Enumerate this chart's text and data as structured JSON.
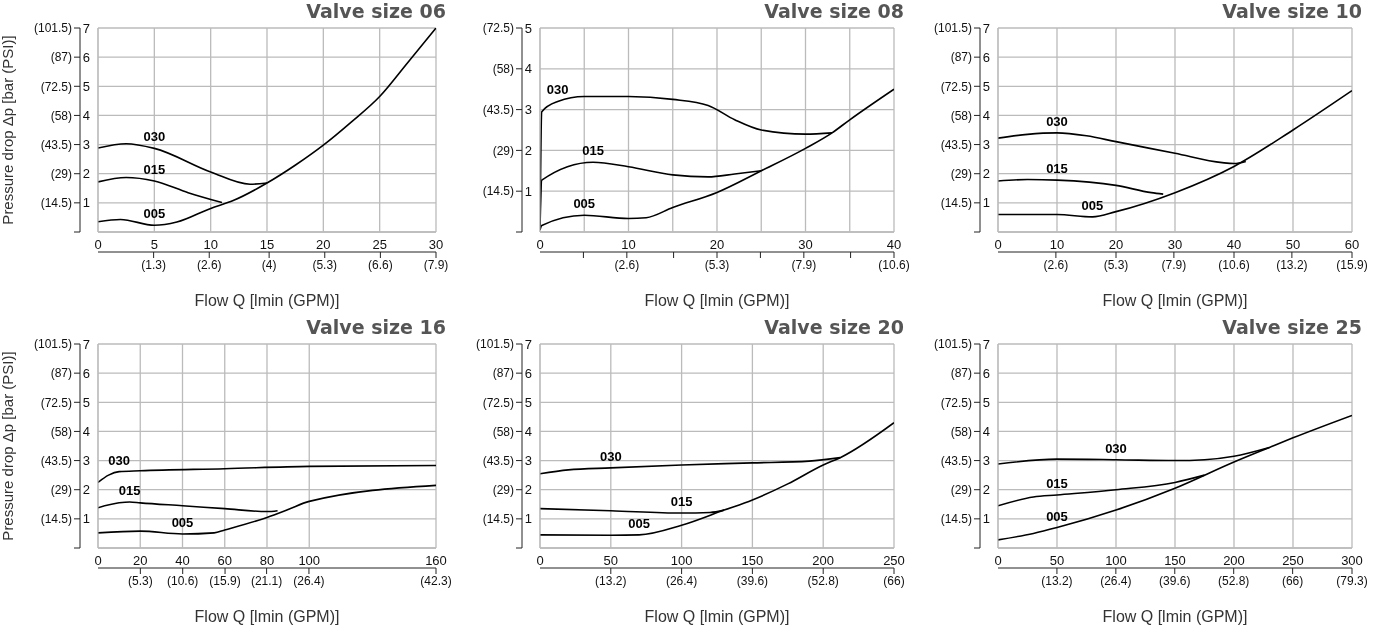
{
  "chart_data": [
    {
      "type": "line",
      "title": "Valve size 06",
      "xlabel": "Flow Q [lmin (GPM)]",
      "y2label": "Pressure drop Δp [bar (PSI)]",
      "grid": true,
      "legend": false,
      "marker": "none",
      "line_style": "solid",
      "xlim": [
        0,
        30
      ],
      "xticks": [
        0,
        5,
        10,
        15,
        20,
        25,
        30
      ],
      "x2lim": [
        0,
        7.9
      ],
      "x2ticks": [
        {
          "value": 1.3,
          "label": "(1.3)"
        },
        {
          "value": 2.6,
          "label": "(2.6)"
        },
        {
          "value": 4,
          "label": "(4)"
        },
        {
          "value": 5.3,
          "label": "(5.3)"
        },
        {
          "value": 6.6,
          "label": "(6.6)"
        },
        {
          "value": 7.9,
          "label": "(7.9)"
        }
      ],
      "ylim": [
        0,
        7
      ],
      "yticks": [
        1,
        2,
        3,
        4,
        5,
        6,
        7
      ],
      "y2lim": [
        0,
        101.5
      ],
      "y2ticks": [
        {
          "value": 0,
          "label": null
        },
        {
          "value": 14.5,
          "label": "(14.5)"
        },
        {
          "value": 29,
          "label": "(29)"
        },
        {
          "value": 43.5,
          "label": "(43.5)"
        },
        {
          "value": 58,
          "label": "(58)"
        },
        {
          "value": 72.5,
          "label": "(72.5)"
        },
        {
          "value": 87,
          "label": "(87)"
        },
        {
          "value": 101.5,
          "label": "(101.5)"
        }
      ],
      "series": [
        {
          "name": "030",
          "color": "#000000",
          "x": [
            0,
            2.5,
            5,
            10,
            13.5,
            15
          ],
          "values": [
            2.88,
            3.03,
            2.87,
            2.06,
            1.64,
            1.68
          ]
        },
        {
          "name": "015",
          "color": "#000000",
          "x": [
            0,
            2.5,
            5,
            8,
            11
          ],
          "values": [
            1.72,
            1.87,
            1.75,
            1.35,
            1.01
          ]
        },
        {
          "name": "005",
          "color": "#000000",
          "x": [
            0,
            2,
            5,
            7,
            10,
            12,
            15,
            17.5,
            20,
            22.5,
            25,
            27.5,
            30
          ],
          "values": [
            0.35,
            0.43,
            0.23,
            0.34,
            0.81,
            1.08,
            1.68,
            2.29,
            2.98,
            3.78,
            4.65,
            5.82,
            7
          ]
        }
      ]
    },
    {
      "type": "line",
      "title": "Valve size 08",
      "xlabel": "Flow Q [lmin (GPM)]",
      "grid": true,
      "legend": false,
      "marker": "none",
      "line_style": "solid",
      "xlim": [
        0,
        40
      ],
      "xticks": [
        0,
        {
          "value": 5,
          "label": null
        },
        10,
        {
          "value": 15,
          "label": null
        },
        20,
        {
          "value": 25,
          "label": null
        },
        30,
        {
          "value": 35,
          "label": null
        },
        40
      ],
      "x2lim": [
        0,
        10.6
      ],
      "x2ticks": [
        {
          "value": 1.3,
          "label": null
        },
        {
          "value": 2.6,
          "label": "(2.6)"
        },
        {
          "value": 4,
          "label": null
        },
        {
          "value": 5.3,
          "label": "(5.3)"
        },
        {
          "value": 6.6,
          "label": null
        },
        {
          "value": 7.9,
          "label": "(7.9)"
        },
        {
          "value": 9.3,
          "label": null
        },
        {
          "value": 10.6,
          "label": "(10.6)"
        }
      ],
      "ylim": [
        0,
        5
      ],
      "yticks": [
        1,
        2,
        3,
        4,
        5
      ],
      "y2lim": [
        0,
        72.5
      ],
      "y2ticks": [
        {
          "value": 0,
          "label": null
        },
        {
          "value": 14.5,
          "label": "(14.5)"
        },
        {
          "value": 29,
          "label": "(29)"
        },
        {
          "value": 43.5,
          "label": "(43.5)"
        },
        {
          "value": 58,
          "label": "(58)"
        },
        {
          "value": 72.5,
          "label": "(72.5)"
        }
      ],
      "series": [
        {
          "name": "030",
          "color": "#000000",
          "x": [
            0,
            0.2,
            2,
            5,
            10,
            15,
            19,
            22,
            25,
            30,
            33
          ],
          "values": [
            0.1,
            2.95,
            3.2,
            3.32,
            3.32,
            3.25,
            3.1,
            2.75,
            2.5,
            2.4,
            2.43
          ]
        },
        {
          "name": "015",
          "color": "#000000",
          "x": [
            0,
            0.2,
            6,
            10,
            15,
            19,
            22,
            25
          ],
          "values": [
            0.1,
            1.27,
            1.71,
            1.6,
            1.4,
            1.35,
            1.42,
            1.5
          ]
        },
        {
          "name": "005",
          "color": "#000000",
          "x": [
            0,
            0.2,
            5,
            10,
            12,
            15,
            20,
            25,
            30,
            33,
            35,
            40
          ],
          "values": [
            0.05,
            0.16,
            0.41,
            0.33,
            0.35,
            0.6,
            0.97,
            1.5,
            2.05,
            2.43,
            2.75,
            3.5
          ]
        }
      ]
    },
    {
      "type": "line",
      "title": "Valve size 10",
      "xlabel": "Flow Q [lmin (GPM)]",
      "grid": true,
      "legend": false,
      "marker": "none",
      "line_style": "solid",
      "xlim": [
        0,
        60
      ],
      "xticks": [
        0,
        10,
        20,
        30,
        40,
        50,
        60
      ],
      "x2lim": [
        0,
        15.9
      ],
      "x2ticks": [
        {
          "value": 2.6,
          "label": "(2.6)"
        },
        {
          "value": 5.3,
          "label": "(5.3)"
        },
        {
          "value": 7.9,
          "label": "(7.9)"
        },
        {
          "value": 10.6,
          "label": "(10.6)"
        },
        {
          "value": 13.2,
          "label": "(13.2)"
        },
        {
          "value": 15.9,
          "label": "(15.9)"
        }
      ],
      "ylim": [
        0,
        7
      ],
      "yticks": [
        1,
        2,
        3,
        4,
        5,
        6,
        7
      ],
      "y2lim": [
        0,
        101.5
      ],
      "y2ticks": [
        {
          "value": 0,
          "label": null
        },
        {
          "value": 14.5,
          "label": "(14.5)"
        },
        {
          "value": 29,
          "label": "(29)"
        },
        {
          "value": 43.5,
          "label": "(43.5)"
        },
        {
          "value": 58,
          "label": "(58)"
        },
        {
          "value": 72.5,
          "label": "(72.5)"
        },
        {
          "value": 87,
          "label": "(87)"
        },
        {
          "value": 101.5,
          "label": "(101.5)"
        }
      ],
      "series": [
        {
          "name": "030",
          "color": "#000000",
          "x": [
            0,
            5,
            10,
            15,
            20,
            30,
            38,
            40,
            42
          ],
          "values": [
            3.22,
            3.35,
            3.4,
            3.3,
            3.1,
            2.7,
            2.38,
            2.35,
            2.42
          ]
        },
        {
          "name": "015",
          "color": "#000000",
          "x": [
            0,
            5,
            10,
            20,
            26,
            28
          ],
          "values": [
            1.75,
            1.8,
            1.78,
            1.6,
            1.35,
            1.3
          ]
        },
        {
          "name": "005",
          "color": "#000000",
          "x": [
            0,
            10,
            16,
            20,
            30,
            40,
            50,
            60
          ],
          "values": [
            0.6,
            0.6,
            0.52,
            0.7,
            1.35,
            2.25,
            3.5,
            4.85
          ]
        }
      ]
    },
    {
      "type": "line",
      "title": "Valve size 16",
      "xlabel": "Flow Q [lmin (GPM)]",
      "y2label": "Pressure drop Δp [bar (PSI)]",
      "grid": true,
      "legend": false,
      "marker": "none",
      "line_style": "solid",
      "xlim": [
        0,
        160
      ],
      "xticks": [
        0,
        20,
        40,
        60,
        80,
        100,
        160
      ],
      "x2lim": [
        0,
        42.3
      ],
      "x2ticks": [
        {
          "value": 5.3,
          "label": "(5.3)"
        },
        {
          "value": 10.6,
          "label": "(10.6)"
        },
        {
          "value": 15.9,
          "label": "(15.9)"
        },
        {
          "value": 21.1,
          "label": "(21.1)"
        },
        {
          "value": 26.4,
          "label": "(26.4)"
        },
        {
          "value": 42.3,
          "label": "(42.3)"
        }
      ],
      "ylim": [
        0,
        7
      ],
      "yticks": [
        1,
        2,
        3,
        4,
        5,
        6,
        7
      ],
      "y2lim": [
        0,
        101.5
      ],
      "y2ticks": [
        {
          "value": 0,
          "label": null
        },
        {
          "value": 14.5,
          "label": "(14.5)"
        },
        {
          "value": 29,
          "label": "(29)"
        },
        {
          "value": 43.5,
          "label": "(43.5)"
        },
        {
          "value": 58,
          "label": "(58)"
        },
        {
          "value": 72.5,
          "label": "(72.5)"
        },
        {
          "value": 87,
          "label": "(87)"
        },
        {
          "value": 101.5,
          "label": "(101.5)"
        }
      ],
      "series": [
        {
          "name": "030",
          "color": "#000000",
          "x": [
            0,
            5,
            10,
            20,
            60,
            100,
            160
          ],
          "values": [
            2.25,
            2.5,
            2.62,
            2.65,
            2.72,
            2.8,
            2.83
          ]
        },
        {
          "name": "015",
          "color": "#000000",
          "x": [
            0,
            10,
            15,
            20,
            40,
            60,
            80,
            85
          ],
          "values": [
            1.38,
            1.55,
            1.58,
            1.55,
            1.45,
            1.35,
            1.25,
            1.28
          ]
        },
        {
          "name": "005",
          "color": "#000000",
          "x": [
            0,
            20,
            40,
            55,
            60,
            80,
            90,
            100,
            160
          ],
          "values": [
            0.52,
            0.58,
            0.48,
            0.52,
            0.62,
            1.05,
            1.32,
            1.6,
            2.15
          ]
        }
      ]
    },
    {
      "type": "line",
      "title": "Valve size 20",
      "xlabel": "Flow Q [lmin (GPM)]",
      "grid": true,
      "legend": false,
      "marker": "none",
      "line_style": "solid",
      "xlim": [
        0,
        250
      ],
      "xticks": [
        0,
        50,
        100,
        150,
        200,
        250
      ],
      "x2lim": [
        0,
        66
      ],
      "x2ticks": [
        {
          "value": 13.2,
          "label": "(13.2)"
        },
        {
          "value": 26.4,
          "label": "(26.4)"
        },
        {
          "value": 39.6,
          "label": "(39.6)"
        },
        {
          "value": 52.8,
          "label": "(52.8)"
        },
        {
          "value": 66,
          "label": "(66)"
        }
      ],
      "ylim": [
        0,
        7
      ],
      "yticks": [
        1,
        2,
        3,
        4,
        5,
        6,
        7
      ],
      "y2lim": [
        0,
        101.5
      ],
      "y2ticks": [
        {
          "value": 0,
          "label": null
        },
        {
          "value": 14.5,
          "label": "(14.5)"
        },
        {
          "value": 29,
          "label": "(29)"
        },
        {
          "value": 43.5,
          "label": "(43.5)"
        },
        {
          "value": 58,
          "label": "(58)"
        },
        {
          "value": 72.5,
          "label": "(72.5)"
        },
        {
          "value": 87,
          "label": "(87)"
        },
        {
          "value": 101.5,
          "label": "(101.5)"
        }
      ],
      "series": [
        {
          "name": "030",
          "color": "#000000",
          "x": [
            0,
            20,
            50,
            100,
            150,
            190,
            212
          ],
          "values": [
            2.55,
            2.68,
            2.75,
            2.85,
            2.92,
            2.98,
            3.1
          ]
        },
        {
          "name": "015",
          "color": "#000000",
          "x": [
            0,
            50,
            100,
            120,
            130
          ],
          "values": [
            1.35,
            1.28,
            1.2,
            1.22,
            1.3
          ]
        },
        {
          "name": "005",
          "color": "#000000",
          "x": [
            0,
            50,
            70,
            100,
            130,
            150,
            175,
            200,
            212,
            250
          ],
          "values": [
            0.45,
            0.44,
            0.45,
            0.78,
            1.3,
            1.65,
            2.2,
            2.85,
            3.1,
            4.3
          ]
        }
      ]
    },
    {
      "type": "line",
      "title": "Valve size 25",
      "xlabel": "Flow Q [lmin (GPM)]",
      "grid": true,
      "legend": false,
      "marker": "none",
      "line_style": "solid",
      "xlim": [
        0,
        300
      ],
      "xticks": [
        0,
        50,
        100,
        150,
        200,
        250,
        300
      ],
      "x2lim": [
        0,
        79.3
      ],
      "x2ticks": [
        {
          "value": 13.2,
          "label": "(13.2)"
        },
        {
          "value": 26.4,
          "label": "(26.4)"
        },
        {
          "value": 39.6,
          "label": "(39.6)"
        },
        {
          "value": 52.8,
          "label": "(52.8)"
        },
        {
          "value": 66,
          "label": "(66)"
        },
        {
          "value": 79.3,
          "label": "(79.3)"
        }
      ],
      "ylim": [
        0,
        7
      ],
      "yticks": [
        1,
        2,
        3,
        4,
        5,
        6,
        7
      ],
      "y2lim": [
        0,
        101.5
      ],
      "y2ticks": [
        {
          "value": 0,
          "label": null
        },
        {
          "value": 14.5,
          "label": "(14.5)"
        },
        {
          "value": 29,
          "label": "(29)"
        },
        {
          "value": 43.5,
          "label": "(43.5)"
        },
        {
          "value": 58,
          "label": "(58)"
        },
        {
          "value": 72.5,
          "label": "(72.5)"
        },
        {
          "value": 87,
          "label": "(87)"
        },
        {
          "value": 101.5,
          "label": "(101.5)"
        }
      ],
      "series": [
        {
          "name": "030",
          "color": "#000000",
          "x": [
            0,
            50,
            100,
            150,
            175,
            200,
            230
          ],
          "values": [
            2.88,
            3.05,
            3.03,
            3.0,
            3.03,
            3.15,
            3.45
          ]
        },
        {
          "name": "015",
          "color": "#000000",
          "x": [
            0,
            30,
            50,
            100,
            150,
            175
          ],
          "values": [
            1.45,
            1.75,
            1.82,
            2.0,
            2.25,
            2.5
          ]
        },
        {
          "name": "005",
          "color": "#000000",
          "x": [
            0,
            30,
            50,
            100,
            150,
            200,
            230,
            250,
            300
          ],
          "values": [
            0.28,
            0.5,
            0.7,
            1.3,
            2.05,
            2.95,
            3.45,
            3.78,
            4.55
          ]
        }
      ]
    }
  ]
}
